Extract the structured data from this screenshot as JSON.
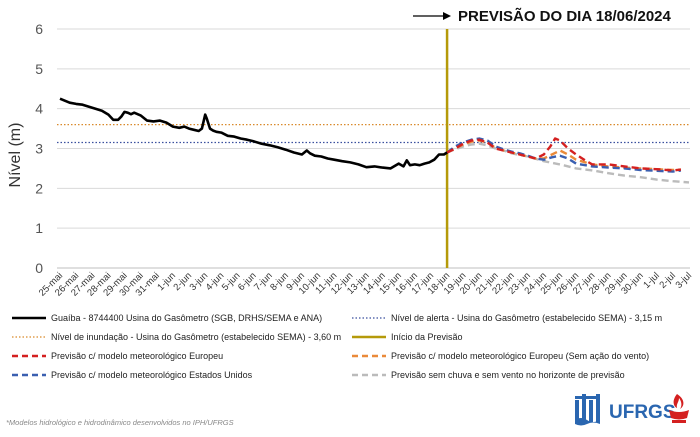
{
  "header": {
    "title": "PREVISÃO DO DIA 18/06/2024",
    "arrow_icon": "right-arrow-icon"
  },
  "chart_data": {
    "type": "line",
    "title": "PREVISÃO DO DIA 18/06/2024",
    "ylabel": "Nível (m)",
    "xlabel": "",
    "ylim": [
      0,
      6
    ],
    "yticks": [
      "0",
      "1",
      "2",
      "3",
      "4",
      "5",
      "6"
    ],
    "categories": [
      "25-mai",
      "26-mai",
      "27-mai",
      "28-mai",
      "29-mai",
      "30-mai",
      "31-mai",
      "1-jun",
      "2-jun",
      "3-jun",
      "4-jun",
      "5-jun",
      "6-jun",
      "7-jun",
      "8-jun",
      "9-jun",
      "10-jun",
      "11-jun",
      "12-jun",
      "13-jun",
      "14-jun",
      "15-jun",
      "16-jun",
      "17-jun",
      "18-jun",
      "19-jun",
      "20-jun",
      "21-jun",
      "22-jun",
      "23-jun",
      "24-jun",
      "25-jun",
      "26-jun",
      "27-jun",
      "28-jun",
      "29-jun",
      "30-jun",
      "1-jul",
      "2-jul",
      "3-jul"
    ],
    "grid": "horizontal",
    "legend_position": "bottom",
    "reference_lines": [
      {
        "name": "Nível de alerta - Usina do Gasômetro (estabelecido SEMA) - 3,15 m",
        "y": 3.15,
        "color": "#3a4f9e",
        "style": "dotted"
      },
      {
        "name": "Nível de inundação - Usina do Gasômetro (estabelecido SEMA) - 3,60 m",
        "y": 3.6,
        "color": "#d98a2b",
        "style": "dotted"
      }
    ],
    "forecast_start": {
      "name": "Início da Previsão",
      "x": 24.0,
      "color": "#b59a0a"
    },
    "series": [
      {
        "name": "Guaíba - 8744400 Usina do Gasômetro (SGB, DRHS/SEMA e ANA)",
        "color": "#000000",
        "style": "solid",
        "x": [
          0.0,
          0.3,
          0.6,
          1.0,
          1.4,
          1.8,
          2.2,
          2.6,
          3.0,
          3.3,
          3.6,
          3.8,
          4.0,
          4.2,
          4.4,
          4.6,
          5.0,
          5.4,
          5.8,
          6.2,
          6.6,
          7.0,
          7.4,
          7.7,
          8.0,
          8.3,
          8.6,
          8.8,
          9.0,
          9.1,
          9.3,
          9.5,
          9.7,
          10.0,
          10.4,
          10.8,
          11.2,
          11.6,
          12.0,
          12.5,
          13.0,
          13.5,
          14.0,
          14.5,
          15.0,
          15.3,
          15.5,
          15.8,
          16.2,
          16.6,
          17.0,
          17.5,
          18.0,
          18.5,
          19.0,
          19.5,
          20.0,
          20.5,
          21.0,
          21.3,
          21.5,
          21.7,
          22.0,
          22.3,
          22.6,
          22.9,
          23.2,
          23.5,
          23.8,
          24.0
        ],
        "y": [
          4.25,
          4.2,
          4.15,
          4.12,
          4.1,
          4.05,
          4.0,
          3.95,
          3.85,
          3.72,
          3.72,
          3.8,
          3.92,
          3.9,
          3.86,
          3.9,
          3.83,
          3.7,
          3.68,
          3.7,
          3.65,
          3.55,
          3.52,
          3.55,
          3.5,
          3.47,
          3.44,
          3.5,
          3.85,
          3.75,
          3.5,
          3.45,
          3.42,
          3.4,
          3.32,
          3.3,
          3.25,
          3.22,
          3.18,
          3.12,
          3.08,
          3.03,
          2.97,
          2.9,
          2.85,
          2.95,
          2.88,
          2.82,
          2.8,
          2.75,
          2.72,
          2.68,
          2.65,
          2.6,
          2.53,
          2.55,
          2.52,
          2.5,
          2.62,
          2.55,
          2.7,
          2.58,
          2.6,
          2.58,
          2.62,
          2.65,
          2.72,
          2.85,
          2.85,
          2.9
        ]
      },
      {
        "name": "Previsão c/ modelo meteorológico Europeu",
        "color": "#d42020",
        "style": "dashed",
        "x": [
          24.0,
          24.5,
          25.0,
          25.5,
          26.0,
          26.5,
          27.0,
          27.5,
          28.0,
          28.5,
          29.0,
          29.5,
          30.0,
          30.4,
          30.7,
          31.0,
          31.5,
          32.0,
          32.5,
          33.0,
          34.0,
          35.0,
          36.0,
          37.0,
          38.0,
          38.5
        ],
        "y": [
          2.9,
          3.0,
          3.12,
          3.2,
          3.22,
          3.15,
          3.0,
          2.95,
          2.9,
          2.85,
          2.8,
          2.75,
          2.85,
          3.05,
          3.25,
          3.2,
          3.0,
          2.85,
          2.72,
          2.6,
          2.6,
          2.55,
          2.5,
          2.48,
          2.45,
          2.47
        ]
      },
      {
        "name": "Previsão c/ modelo meteorológico Europeu (Sem ação do vento)",
        "color": "#ea8a3a",
        "style": "dashed",
        "x": [
          24.0,
          24.5,
          25.0,
          25.5,
          26.0,
          26.5,
          27.0,
          27.5,
          28.0,
          28.5,
          29.0,
          29.5,
          30.0,
          30.5,
          31.0,
          31.5,
          32.0,
          33.0,
          34.0,
          35.0,
          36.0,
          37.0,
          38.0,
          38.5
        ],
        "y": [
          2.9,
          3.0,
          3.1,
          3.17,
          3.2,
          3.15,
          3.02,
          2.95,
          2.9,
          2.85,
          2.8,
          2.75,
          2.75,
          2.85,
          2.95,
          2.85,
          2.72,
          2.6,
          2.55,
          2.52,
          2.5,
          2.48,
          2.46,
          2.47
        ]
      },
      {
        "name": "Previsão c/ modelo meteorológico Estados Unidos",
        "color": "#3a5fb0",
        "style": "dashed",
        "x": [
          24.0,
          24.5,
          25.0,
          25.5,
          26.0,
          26.5,
          27.0,
          27.5,
          28.0,
          28.5,
          29.0,
          29.5,
          30.0,
          30.5,
          31.0,
          31.5,
          32.0,
          33.0,
          34.0,
          35.0,
          36.0,
          37.0,
          38.0,
          38.5
        ],
        "y": [
          2.9,
          3.05,
          3.15,
          3.22,
          3.25,
          3.2,
          3.05,
          2.98,
          2.92,
          2.88,
          2.82,
          2.75,
          2.72,
          2.78,
          2.82,
          2.75,
          2.62,
          2.55,
          2.52,
          2.5,
          2.46,
          2.44,
          2.42,
          2.45
        ]
      },
      {
        "name": "Previsão sem chuva e sem vento no horizonte de previsão",
        "color": "#bbbbbb",
        "style": "dashed",
        "x": [
          24.0,
          24.5,
          25.0,
          25.5,
          26.0,
          26.5,
          27.0,
          27.5,
          28.0,
          29.0,
          30.0,
          31.0,
          32.0,
          33.0,
          34.0,
          35.0,
          36.0,
          37.0,
          38.0,
          39.0
        ],
        "y": [
          2.9,
          2.98,
          3.05,
          3.1,
          3.12,
          3.08,
          3.0,
          2.95,
          2.88,
          2.8,
          2.68,
          2.6,
          2.5,
          2.45,
          2.38,
          2.32,
          2.28,
          2.22,
          2.18,
          2.15
        ]
      }
    ]
  },
  "legend": {
    "items": [
      "Guaíba - 8744400 Usina do Gasômetro (SGB, DRHS/SEMA e ANA)",
      "Nível de alerta - Usina do Gasômetro (estabelecido SEMA) - 3,15 m",
      "Nível de inundação - Usina do Gasômetro (estabelecido SEMA) - 3,60 m",
      "Início da Previsão",
      "Previsão c/ modelo meteorológico Europeu",
      "Previsão c/ modelo meteorológico Europeu (Sem ação do vento)",
      "Previsão c/ modelo meteorológico Estados Unidos",
      "Previsão sem chuva e sem vento no horizonte de previsão"
    ]
  },
  "footnote": "*Modelos hidrológico e hidrodinâmico desenvolvidos no IPH/UFRGS",
  "logos": {
    "iph_icon": "iph-logo",
    "ufrgs_text": "UFRGS",
    "ufrgs_icon": "ufrgs-flame-logo",
    "ufrgs_color": "#d42020",
    "iph_color": "#2a66b0"
  }
}
